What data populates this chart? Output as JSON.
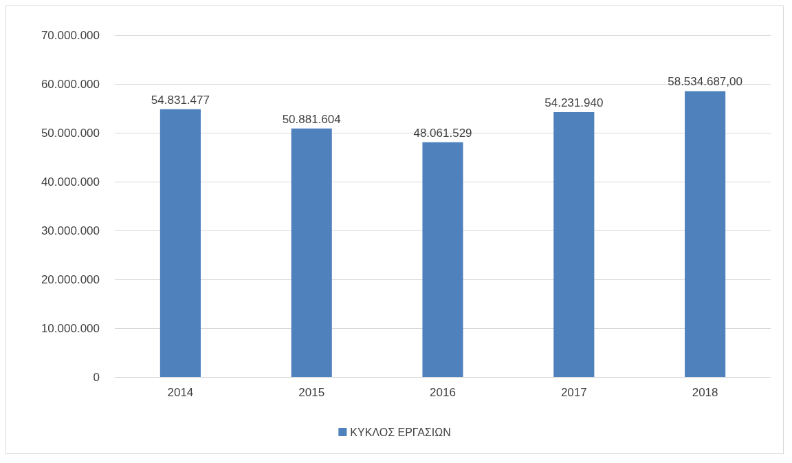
{
  "chart_data": {
    "type": "bar",
    "categories": [
      "2014",
      "2015",
      "2016",
      "2017",
      "2018"
    ],
    "series": [
      {
        "name": "ΚΥΚΛΟΣ ΕΡΓΑΣΙΩΝ",
        "color": "#4f81bd",
        "values": [
          54831477,
          50881604,
          48061529,
          54231940,
          58534687
        ],
        "value_labels": [
          "54.831.477",
          "50.881.604",
          "48.061.529",
          "54.231.940",
          "58.534.687,00"
        ]
      }
    ],
    "ylim": [
      0,
      70000000
    ],
    "yticks": [
      0,
      {
        "value": 10000000,
        "label": "10.000.000"
      },
      {
        "value": 20000000,
        "label": "20.000.000"
      },
      {
        "value": 30000000,
        "label": "30.000.000"
      },
      {
        "value": 40000000,
        "label": "40.000.000"
      },
      {
        "value": 50000000,
        "label": "50.000.000"
      },
      {
        "value": 60000000,
        "label": "60.000.000"
      },
      {
        "value": 70000000,
        "label": "70.000.000"
      }
    ],
    "grid": "y",
    "legend": "bottom"
  }
}
